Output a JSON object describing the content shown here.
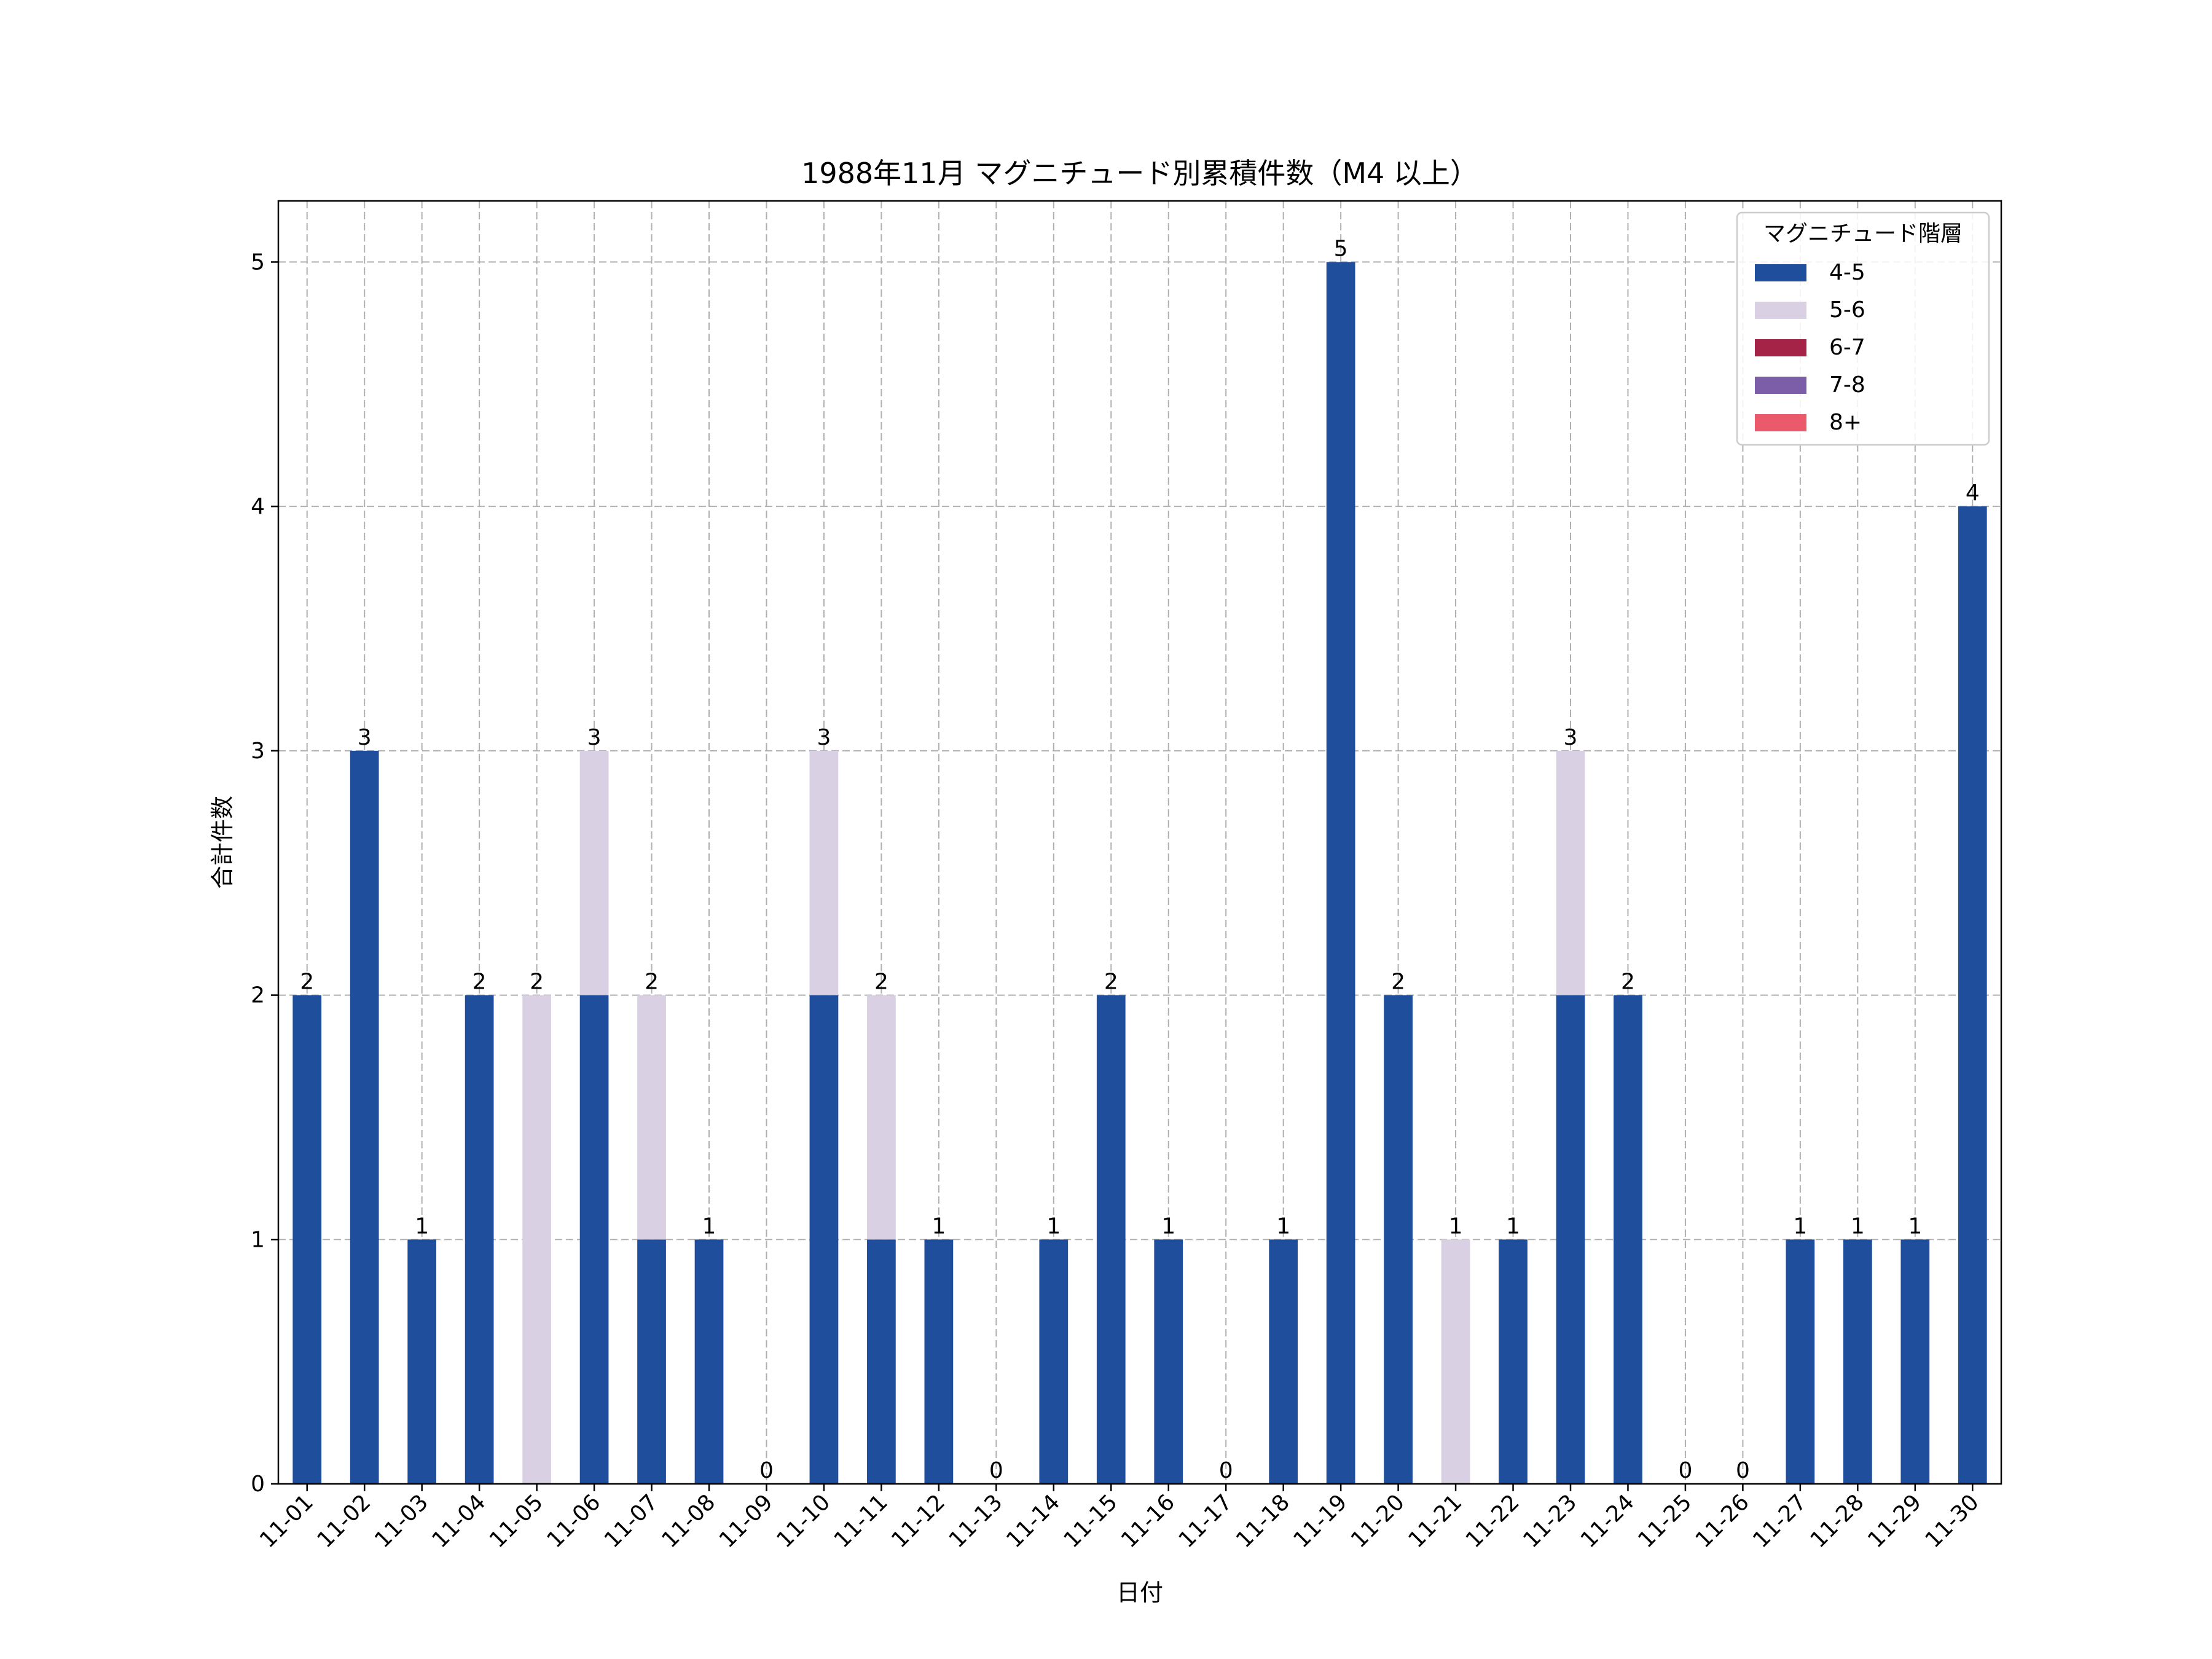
{
  "chart_data": {
    "type": "bar",
    "stacked": true,
    "title": "1988年11月 マグニチュード別累積件数（M4 以上）",
    "xlabel": "日付",
    "ylabel": "合計件数",
    "ylim": [
      0,
      5.25
    ],
    "yticks": [
      0,
      1,
      2,
      3,
      4,
      5
    ],
    "grid": true,
    "legend_title": "マグニチュード階層",
    "legend_position": "top-right",
    "categories": [
      "11-01",
      "11-02",
      "11-03",
      "11-04",
      "11-05",
      "11-06",
      "11-07",
      "11-08",
      "11-09",
      "11-10",
      "11-11",
      "11-12",
      "11-13",
      "11-14",
      "11-15",
      "11-16",
      "11-17",
      "11-18",
      "11-19",
      "11-20",
      "11-21",
      "11-22",
      "11-23",
      "11-24",
      "11-25",
      "11-26",
      "11-27",
      "11-28",
      "11-29",
      "11-30"
    ],
    "series": [
      {
        "name": "4-5",
        "color": "#1f4e9c",
        "values": [
          2,
          3,
          1,
          2,
          0,
          2,
          1,
          1,
          0,
          2,
          1,
          1,
          0,
          1,
          2,
          1,
          0,
          1,
          5,
          2,
          0,
          1,
          2,
          2,
          0,
          0,
          1,
          1,
          1,
          4
        ]
      },
      {
        "name": "5-6",
        "color": "#dad0e4",
        "values": [
          0,
          0,
          0,
          0,
          2,
          1,
          1,
          0,
          0,
          1,
          1,
          0,
          0,
          0,
          0,
          0,
          0,
          0,
          0,
          0,
          1,
          0,
          1,
          0,
          0,
          0,
          0,
          0,
          0,
          0
        ]
      },
      {
        "name": "6-7",
        "color": "#a42347",
        "values": [
          0,
          0,
          0,
          0,
          0,
          0,
          0,
          0,
          0,
          0,
          0,
          0,
          0,
          0,
          0,
          0,
          0,
          0,
          0,
          0,
          0,
          0,
          0,
          0,
          0,
          0,
          0,
          0,
          0,
          0
        ]
      },
      {
        "name": "7-8",
        "color": "#7b5ea7",
        "values": [
          0,
          0,
          0,
          0,
          0,
          0,
          0,
          0,
          0,
          0,
          0,
          0,
          0,
          0,
          0,
          0,
          0,
          0,
          0,
          0,
          0,
          0,
          0,
          0,
          0,
          0,
          0,
          0,
          0,
          0
        ]
      },
      {
        "name": "8+",
        "color": "#ea5a6a",
        "values": [
          0,
          0,
          0,
          0,
          0,
          0,
          0,
          0,
          0,
          0,
          0,
          0,
          0,
          0,
          0,
          0,
          0,
          0,
          0,
          0,
          0,
          0,
          0,
          0,
          0,
          0,
          0,
          0,
          0,
          0
        ]
      }
    ],
    "totals": [
      2,
      3,
      1,
      2,
      2,
      3,
      2,
      1,
      0,
      3,
      2,
      1,
      0,
      1,
      2,
      1,
      0,
      1,
      5,
      2,
      1,
      1,
      3,
      2,
      0,
      0,
      1,
      1,
      1,
      4
    ]
  }
}
